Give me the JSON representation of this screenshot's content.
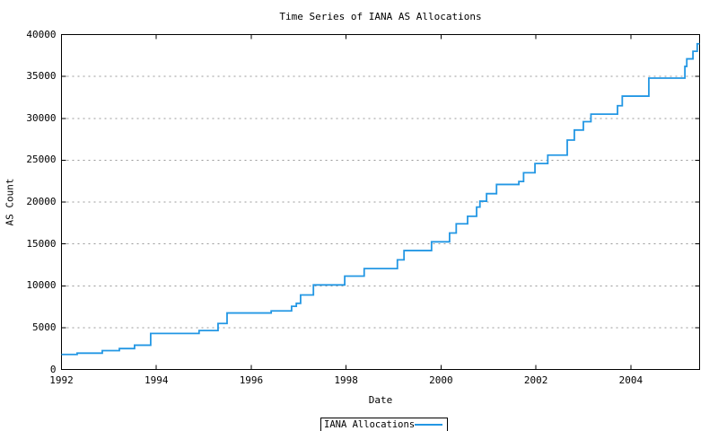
{
  "page": {
    "background": "#ffffff"
  },
  "chart_data": {
    "type": "line",
    "style": "step-after",
    "title": "Time Series of IANA AS Allocations",
    "xlabel": "Date",
    "ylabel": "AS Count",
    "legend": {
      "label": "IANA Allocations",
      "position": "below-center"
    },
    "line_color": "#2397e4",
    "grid_color": "#999999",
    "axis_color": "#000000",
    "grid": true,
    "xlim": [
      1992,
      2005.45
    ],
    "ylim": [
      0,
      40000
    ],
    "x_ticks": [
      1992,
      1994,
      1996,
      1998,
      2000,
      2002,
      2004
    ],
    "y_ticks": [
      0,
      5000,
      10000,
      15000,
      20000,
      25000,
      30000,
      35000,
      40000
    ],
    "series": [
      {
        "name": "IANA Allocations",
        "points": [
          [
            1992.0,
            1800
          ],
          [
            1992.33,
            1950
          ],
          [
            1992.86,
            2250
          ],
          [
            1993.22,
            2500
          ],
          [
            1993.54,
            2900
          ],
          [
            1993.88,
            4300
          ],
          [
            1994.9,
            4650
          ],
          [
            1995.3,
            5500
          ],
          [
            1995.49,
            6750
          ],
          [
            1996.42,
            7000
          ],
          [
            1996.85,
            7550
          ],
          [
            1996.95,
            7900
          ],
          [
            1997.04,
            8900
          ],
          [
            1997.31,
            10100
          ],
          [
            1997.97,
            11150
          ],
          [
            1998.38,
            12050
          ],
          [
            1999.08,
            13100
          ],
          [
            1999.22,
            14200
          ],
          [
            1999.8,
            15250
          ],
          [
            2000.18,
            16300
          ],
          [
            2000.32,
            17400
          ],
          [
            2000.56,
            18300
          ],
          [
            2000.75,
            19400
          ],
          [
            2000.82,
            20100
          ],
          [
            2000.96,
            21000
          ],
          [
            2001.17,
            22100
          ],
          [
            2001.64,
            22450
          ],
          [
            2001.74,
            23500
          ],
          [
            2001.98,
            24600
          ],
          [
            2002.25,
            25600
          ],
          [
            2002.66,
            27400
          ],
          [
            2002.81,
            28600
          ],
          [
            2003.0,
            29600
          ],
          [
            2003.16,
            30500
          ],
          [
            2003.72,
            31500
          ],
          [
            2003.82,
            32650
          ],
          [
            2004.38,
            34800
          ],
          [
            2005.14,
            36200
          ],
          [
            2005.18,
            37100
          ],
          [
            2005.31,
            38000
          ],
          [
            2005.4,
            38900
          ]
        ]
      }
    ]
  }
}
